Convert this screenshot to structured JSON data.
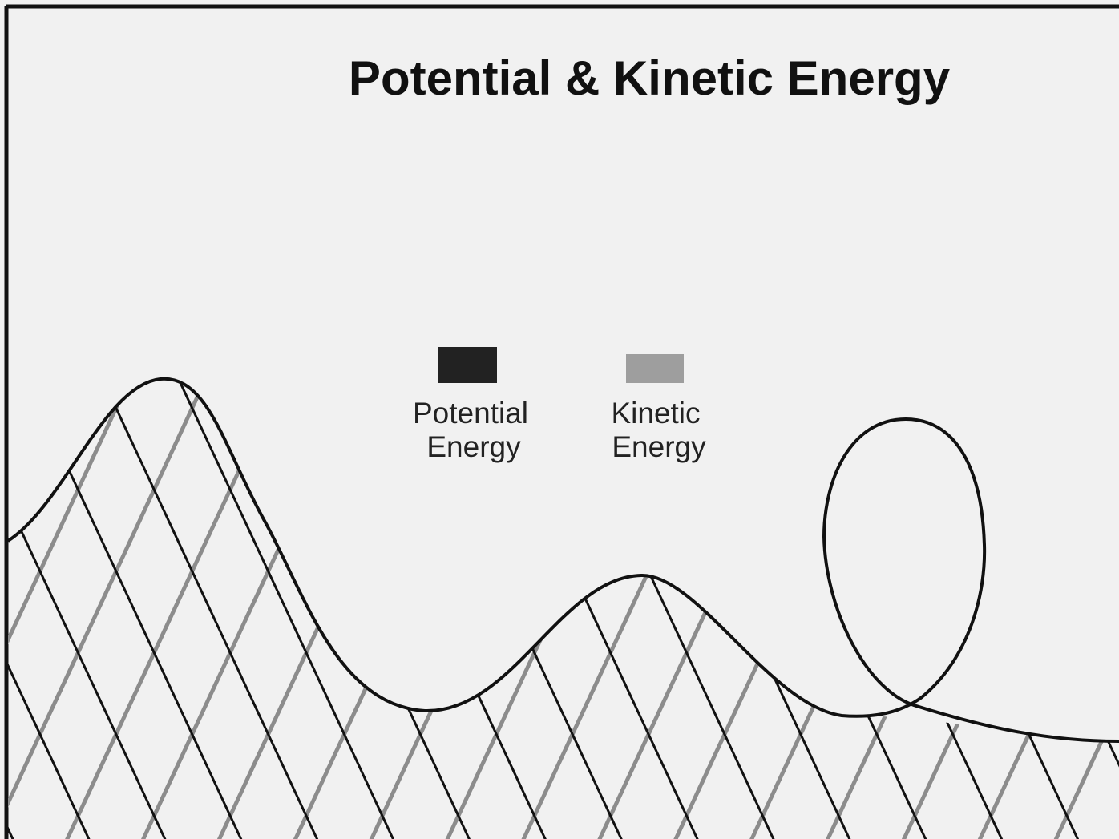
{
  "title": "Potential & Kinetic Energy",
  "legend": [
    {
      "label": [
        "Potential",
        "Energy"
      ]
    },
    {
      "label": [
        "Kinetic",
        "Energy"
      ]
    }
  ]
}
